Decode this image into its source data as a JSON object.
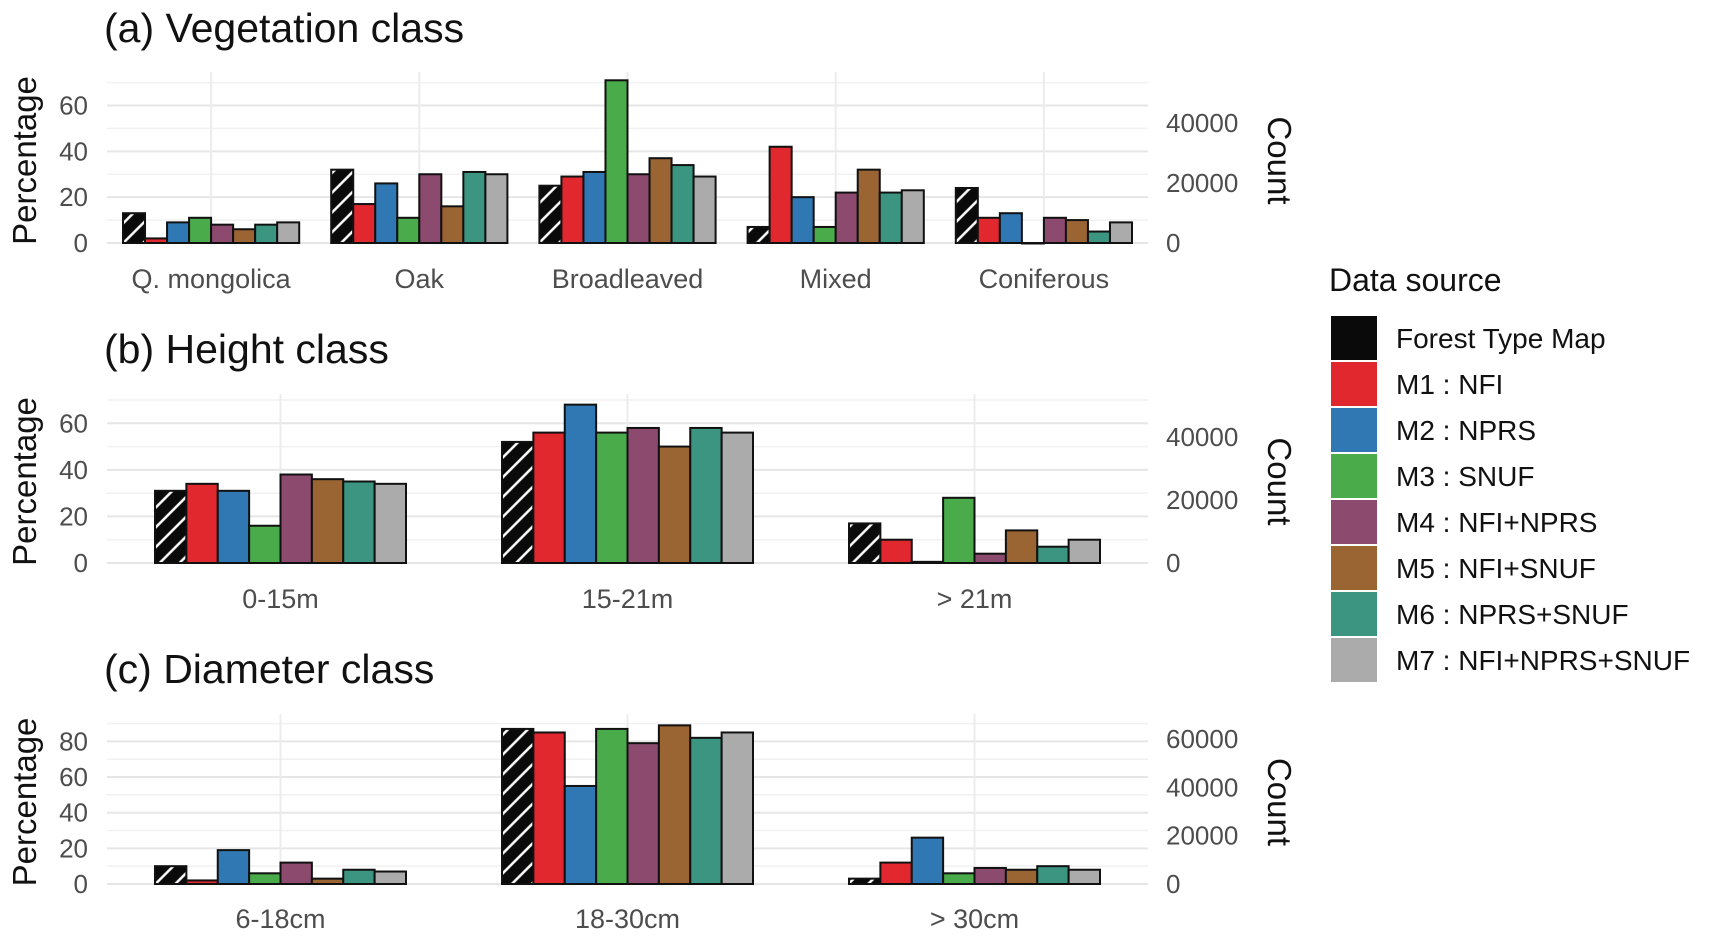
{
  "colors": {
    "Forest Type Map": "#0a0a0a",
    "M1 : NFI": "#e0282e",
    "M2 : NPRS": "#2f78b4",
    "M3 : SNUF": "#4aab4a",
    "M4 : NFI+NPRS": "#8c4b6e",
    "M5 : NFI+SNUF": "#9a6433",
    "M6 : NPRS+SNUF": "#3b9580",
    "M7 : NFI+NPRS+SNUF": "#ababab"
  },
  "legend": {
    "title": "Data source",
    "items": [
      "Forest Type Map",
      "M1 : NFI",
      "M2 : NPRS",
      "M3 : SNUF",
      "M4 : NFI+NPRS",
      "M5 : NFI+SNUF",
      "M6 : NPRS+SNUF",
      "M7 : NFI+NPRS+SNUF"
    ]
  },
  "chart_data": [
    {
      "type": "bar",
      "title": "(a) Vegetation class",
      "ylabel": "Percentage",
      "y2label": "Count",
      "ylim": [
        0,
        72
      ],
      "yticks": [
        0,
        20,
        40,
        60
      ],
      "y2ticks": [
        "0",
        "20000",
        "40000"
      ],
      "categories": [
        "Q. mongolica",
        "Oak",
        "Broadleaved",
        "Mixed",
        "Coniferous"
      ],
      "series": [
        {
          "name": "Forest Type Map",
          "values": [
            13,
            32,
            25,
            7,
            24
          ]
        },
        {
          "name": "M1 : NFI",
          "values": [
            2,
            17,
            29,
            42,
            11
          ]
        },
        {
          "name": "M2 : NPRS",
          "values": [
            9,
            26,
            31,
            20,
            13
          ]
        },
        {
          "name": "M3 : SNUF",
          "values": [
            11,
            11,
            71,
            7,
            0
          ]
        },
        {
          "name": "M4 : NFI+NPRS",
          "values": [
            8,
            30,
            30,
            22,
            11
          ]
        },
        {
          "name": "M5 : NFI+SNUF",
          "values": [
            6,
            16,
            37,
            32,
            10
          ]
        },
        {
          "name": "M6 : NPRS+SNUF",
          "values": [
            8,
            31,
            34,
            22,
            5
          ]
        },
        {
          "name": "M7 : NFI+NPRS+SNUF",
          "values": [
            9,
            30,
            29,
            23,
            9
          ]
        }
      ]
    },
    {
      "type": "bar",
      "title": "(b) Height class",
      "ylabel": "Percentage",
      "y2label": "Count",
      "ylim": [
        0,
        70
      ],
      "yticks": [
        0,
        20,
        40,
        60
      ],
      "y2ticks": [
        "0",
        "20000",
        "40000"
      ],
      "categories": [
        "0-15m",
        "15-21m",
        "> 21m"
      ],
      "series": [
        {
          "name": "Forest Type Map",
          "values": [
            31,
            52,
            17
          ]
        },
        {
          "name": "M1 : NFI",
          "values": [
            34,
            56,
            10
          ]
        },
        {
          "name": "M2 : NPRS",
          "values": [
            31,
            68,
            0.5
          ]
        },
        {
          "name": "M3 : SNUF",
          "values": [
            16,
            56,
            28
          ]
        },
        {
          "name": "M4 : NFI+NPRS",
          "values": [
            38,
            58,
            4
          ]
        },
        {
          "name": "M5 : NFI+SNUF",
          "values": [
            36,
            50,
            14
          ]
        },
        {
          "name": "M6 : NPRS+SNUF",
          "values": [
            35,
            58,
            7
          ]
        },
        {
          "name": "M7 : NFI+NPRS+SNUF",
          "values": [
            34,
            56,
            10
          ]
        }
      ]
    },
    {
      "type": "bar",
      "title": "(c) Diameter class",
      "ylabel": "Percentage",
      "y2label": "Count",
      "ylim": [
        0,
        92
      ],
      "yticks": [
        0,
        20,
        40,
        60,
        80
      ],
      "y2ticks": [
        "0",
        "20000",
        "40000",
        "60000"
      ],
      "categories": [
        "6-18cm",
        "18-30cm",
        "> 30cm"
      ],
      "series": [
        {
          "name": "Forest Type Map",
          "values": [
            10,
            87,
            3
          ]
        },
        {
          "name": "M1 : NFI",
          "values": [
            2,
            85,
            12
          ]
        },
        {
          "name": "M2 : NPRS",
          "values": [
            19,
            55,
            26
          ]
        },
        {
          "name": "M3 : SNUF",
          "values": [
            6,
            87,
            6
          ]
        },
        {
          "name": "M4 : NFI+NPRS",
          "values": [
            12,
            79,
            9
          ]
        },
        {
          "name": "M5 : NFI+SNUF",
          "values": [
            3,
            89,
            8
          ]
        },
        {
          "name": "M6 : NPRS+SNUF",
          "values": [
            8,
            82,
            10
          ]
        },
        {
          "name": "M7 : NFI+NPRS+SNUF",
          "values": [
            7,
            85,
            8
          ]
        }
      ]
    }
  ]
}
